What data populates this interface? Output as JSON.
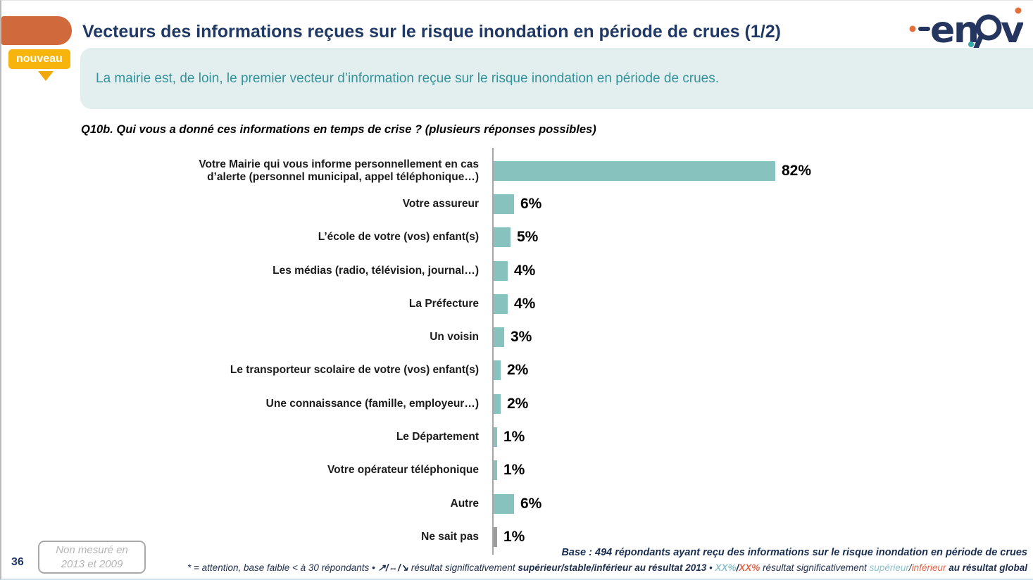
{
  "header": {
    "title": "Vecteurs des informations reçues sur le risque inondation en période de crues (1/2)",
    "badge_label": "nouveau",
    "logo_text": "enov"
  },
  "banner": {
    "text": "La mairie est, de loin, le premier vecteur d’information reçue sur le risque inondation en période de crues."
  },
  "question": "Q10b. Qui vous a donné ces informations en temps de crise ? (plusieurs réponses possibles)",
  "chart_data": {
    "type": "bar",
    "orientation": "horizontal",
    "unit": "%",
    "categories": [
      "Votre Mairie qui vous informe personnellement en cas d’alerte (personnel municipal, appel téléphonique…)",
      "Votre assureur",
      "L’école de votre (vos) enfant(s)",
      "Les médias (radio, télévision, journal…)",
      "La Préfecture",
      "Un voisin",
      "Le transporteur scolaire de votre (vos) enfant(s)",
      "Une connaissance (famille, employeur…)",
      "Le Département",
      "Votre opérateur téléphonique",
      "Autre",
      "Ne sait pas"
    ],
    "values": [
      82,
      6,
      5,
      4,
      4,
      3,
      2,
      2,
      1,
      1,
      6,
      1
    ],
    "value_labels": [
      "82%",
      "6%",
      "5%",
      "4%",
      "4%",
      "3%",
      "2%",
      "2%",
      "1%",
      "1%",
      "6%",
      "1%"
    ],
    "bar_colors": [
      "#87c2bf",
      "#87c2bf",
      "#87c2bf",
      "#87c2bf",
      "#87c2bf",
      "#87c2bf",
      "#87c2bf",
      "#87c2bf",
      "#87c2bf",
      "#87c2bf",
      "#87c2bf",
      "#9b9b9b"
    ],
    "xlim": [
      0,
      100
    ],
    "grid": false,
    "legend": false
  },
  "footer": {
    "page_number": "36",
    "not_measured_line1": "Non mesuré en",
    "not_measured_line2": "2013 et 2009",
    "base_note": "Base : 494 répondants ayant reçu des informations sur le risque inondation en période de crues",
    "footnote_parts": [
      {
        "text": "* = attention, base faible < à 30 répondants • ",
        "style": "plain"
      },
      {
        "text": "↗/⇔/↘",
        "style": "b"
      },
      {
        "text": "  résultat significativement ",
        "style": "plain"
      },
      {
        "text": "supérieur/stable/inférieur",
        "style": "b"
      },
      {
        "text": " au résultat 2013",
        "style": "b"
      },
      {
        "text": " • ",
        "style": "plain"
      },
      {
        "text": "XX%",
        "style": "teal b"
      },
      {
        "text": "/",
        "style": "b"
      },
      {
        "text": "XX%",
        "style": "coral b"
      },
      {
        "text": " résultat significativement ",
        "style": "plain"
      },
      {
        "text": "supérieur",
        "style": "teal"
      },
      {
        "text": "/",
        "style": "plain"
      },
      {
        "text": "inférieur",
        "style": "coral"
      },
      {
        "text": " au résultat global",
        "style": "b"
      }
    ]
  },
  "colors": {
    "accent_orange": "#d0693c",
    "badge_gold": "#f6b40d",
    "banner_bg": "#e2efee",
    "banner_text": "#35929b",
    "title_navy": "#203864",
    "bar_teal": "#87c2bf",
    "bar_gray": "#9b9b9b",
    "axis_gray": "#a6a6a6",
    "footnote_teal": "#8fc3cb",
    "footnote_coral": "#e0664b"
  }
}
